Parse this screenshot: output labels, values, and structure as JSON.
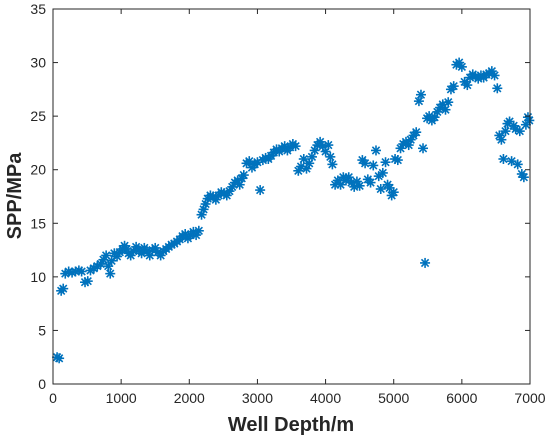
{
  "chart_data": {
    "type": "scatter",
    "title": "",
    "xlabel": "Well Depth/m",
    "ylabel": "SPP/MPa",
    "xlim": [
      0,
      7000
    ],
    "ylim": [
      0,
      35
    ],
    "xticks": [
      0,
      1000,
      2000,
      3000,
      4000,
      5000,
      6000,
      7000
    ],
    "yticks": [
      0,
      5,
      10,
      15,
      20,
      25,
      30,
      35
    ],
    "grid": false,
    "legend": "none",
    "marker": "asterisk",
    "color": "#0072BD",
    "series": [
      {
        "points": [
          [
            60,
            2.5
          ],
          [
            90,
            2.4
          ],
          [
            120,
            8.7
          ],
          [
            150,
            8.9
          ],
          [
            180,
            10.3
          ],
          [
            230,
            10.5
          ],
          [
            280,
            10.4
          ],
          [
            330,
            10.5
          ],
          [
            380,
            10.6
          ],
          [
            420,
            10.5
          ],
          [
            470,
            9.5
          ],
          [
            510,
            9.6
          ],
          [
            550,
            10.6
          ],
          [
            600,
            10.8
          ],
          [
            650,
            11.0
          ],
          [
            700,
            11.2
          ],
          [
            740,
            11.6
          ],
          [
            780,
            12.0
          ],
          [
            810,
            11.0
          ],
          [
            840,
            10.3
          ],
          [
            860,
            11.5
          ],
          [
            900,
            12.2
          ],
          [
            940,
            11.9
          ],
          [
            980,
            12.3
          ],
          [
            1020,
            12.6
          ],
          [
            1050,
            12.9
          ],
          [
            1080,
            12.6
          ],
          [
            1110,
            12.2
          ],
          [
            1140,
            12.0
          ],
          [
            1180,
            12.4
          ],
          [
            1220,
            12.8
          ],
          [
            1260,
            12.5
          ],
          [
            1300,
            12.2
          ],
          [
            1340,
            12.7
          ],
          [
            1380,
            12.4
          ],
          [
            1420,
            12.0
          ],
          [
            1460,
            12.5
          ],
          [
            1500,
            12.7
          ],
          [
            1540,
            12.3
          ],
          [
            1580,
            12.0
          ],
          [
            1620,
            12.4
          ],
          [
            1660,
            12.6
          ],
          [
            1700,
            12.8
          ],
          [
            1740,
            13.0
          ],
          [
            1780,
            13.1
          ],
          [
            1820,
            13.3
          ],
          [
            1860,
            13.5
          ],
          [
            1900,
            13.8
          ],
          [
            1940,
            14.0
          ],
          [
            1980,
            13.6
          ],
          [
            2020,
            13.9
          ],
          [
            2060,
            14.2
          ],
          [
            2100,
            13.9
          ],
          [
            2140,
            14.3
          ],
          [
            2180,
            15.8
          ],
          [
            2210,
            16.3
          ],
          [
            2240,
            16.8
          ],
          [
            2270,
            17.3
          ],
          [
            2310,
            17.6
          ],
          [
            2350,
            17.5
          ],
          [
            2390,
            17.2
          ],
          [
            2430,
            17.6
          ],
          [
            2470,
            17.9
          ],
          [
            2510,
            17.8
          ],
          [
            2550,
            17.6
          ],
          [
            2590,
            18.0
          ],
          [
            2630,
            18.4
          ],
          [
            2670,
            18.8
          ],
          [
            2710,
            19.0
          ],
          [
            2740,
            18.6
          ],
          [
            2770,
            19.2
          ],
          [
            2800,
            19.5
          ],
          [
            2840,
            20.6
          ],
          [
            2880,
            20.8
          ],
          [
            2920,
            20.2
          ],
          [
            2960,
            20.5
          ],
          [
            3000,
            20.7
          ],
          [
            3040,
            18.1
          ],
          [
            3080,
            20.9
          ],
          [
            3120,
            21.1
          ],
          [
            3160,
            21.0
          ],
          [
            3200,
            21.3
          ],
          [
            3240,
            21.6
          ],
          [
            3280,
            21.9
          ],
          [
            3320,
            21.7
          ],
          [
            3360,
            22.0
          ],
          [
            3400,
            22.2
          ],
          [
            3440,
            21.8
          ],
          [
            3480,
            22.1
          ],
          [
            3520,
            22.4
          ],
          [
            3560,
            22.2
          ],
          [
            3600,
            19.9
          ],
          [
            3640,
            20.3
          ],
          [
            3680,
            21.0
          ],
          [
            3720,
            20.1
          ],
          [
            3760,
            20.6
          ],
          [
            3800,
            21.2
          ],
          [
            3840,
            21.8
          ],
          [
            3880,
            22.3
          ],
          [
            3920,
            22.6
          ],
          [
            3960,
            22.2
          ],
          [
            4000,
            21.7
          ],
          [
            4040,
            22.3
          ],
          [
            4070,
            21.2
          ],
          [
            4100,
            20.5
          ],
          [
            4140,
            18.6
          ],
          [
            4180,
            19.0
          ],
          [
            4220,
            18.6
          ],
          [
            4260,
            19.3
          ],
          [
            4300,
            19.0
          ],
          [
            4340,
            19.3
          ],
          [
            4380,
            18.8
          ],
          [
            4420,
            18.4
          ],
          [
            4460,
            18.9
          ],
          [
            4500,
            18.5
          ],
          [
            4540,
            20.9
          ],
          [
            4580,
            20.6
          ],
          [
            4620,
            19.1
          ],
          [
            4660,
            18.8
          ],
          [
            4700,
            20.4
          ],
          [
            4740,
            21.8
          ],
          [
            4780,
            19.4
          ],
          [
            4810,
            18.2
          ],
          [
            4840,
            19.7
          ],
          [
            4880,
            20.7
          ],
          [
            4910,
            18.6
          ],
          [
            4940,
            18.3
          ],
          [
            4970,
            17.6
          ],
          [
            5000,
            17.9
          ],
          [
            5020,
            21.0
          ],
          [
            5060,
            20.9
          ],
          [
            5100,
            22.0
          ],
          [
            5140,
            22.4
          ],
          [
            5180,
            22.6
          ],
          [
            5220,
            22.3
          ],
          [
            5250,
            22.8
          ],
          [
            5290,
            23.2
          ],
          [
            5330,
            23.5
          ],
          [
            5370,
            26.4
          ],
          [
            5400,
            27.0
          ],
          [
            5430,
            22.0
          ],
          [
            5460,
            11.3
          ],
          [
            5490,
            24.8
          ],
          [
            5520,
            25.0
          ],
          [
            5560,
            24.6
          ],
          [
            5600,
            24.9
          ],
          [
            5640,
            25.4
          ],
          [
            5680,
            25.8
          ],
          [
            5720,
            26.1
          ],
          [
            5760,
            25.6
          ],
          [
            5800,
            26.3
          ],
          [
            5840,
            27.5
          ],
          [
            5880,
            27.8
          ],
          [
            5920,
            29.8
          ],
          [
            5960,
            30.0
          ],
          [
            6000,
            29.6
          ],
          [
            6040,
            28.2
          ],
          [
            6080,
            27.9
          ],
          [
            6120,
            28.6
          ],
          [
            6160,
            28.9
          ],
          [
            6200,
            28.7
          ],
          [
            6240,
            28.5
          ],
          [
            6280,
            28.8
          ],
          [
            6320,
            28.6
          ],
          [
            6360,
            28.9
          ],
          [
            6400,
            29.0
          ],
          [
            6440,
            29.2
          ],
          [
            6480,
            28.8
          ],
          [
            6520,
            27.6
          ],
          [
            6550,
            23.2
          ],
          [
            6580,
            22.8
          ],
          [
            6610,
            21.0
          ],
          [
            6640,
            23.6
          ],
          [
            6670,
            24.3
          ],
          [
            6700,
            24.5
          ],
          [
            6730,
            20.8
          ],
          [
            6760,
            24.1
          ],
          [
            6790,
            23.8
          ],
          [
            6820,
            20.5
          ],
          [
            6850,
            23.6
          ],
          [
            6880,
            19.6
          ],
          [
            6910,
            19.3
          ],
          [
            6940,
            24.2
          ],
          [
            6970,
            24.9
          ],
          [
            6990,
            24.6
          ]
        ]
      }
    ]
  }
}
